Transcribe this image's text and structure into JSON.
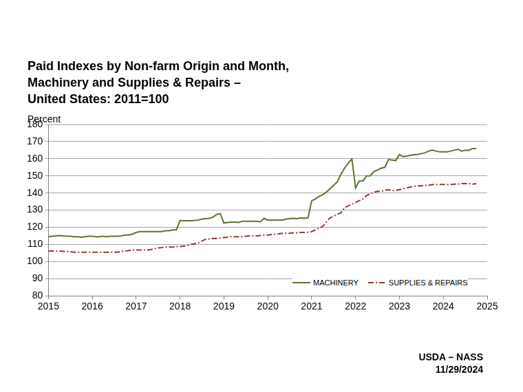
{
  "chart_data": {
    "type": "line",
    "title": [
      "Paid Indexes by Non-farm Origin and Month,",
      "Machinery and Supplies & Repairs –",
      "United States: 2011=100"
    ],
    "y_label": "Percent",
    "source": "USDA – NASS",
    "date": "11/29/2024",
    "xlim": [
      2015,
      2025
    ],
    "xticks": [
      2015,
      2016,
      2017,
      2018,
      2019,
      2020,
      2021,
      2022,
      2023,
      2024,
      2025
    ],
    "ylim": [
      80,
      180
    ],
    "yticks": [
      80,
      90,
      100,
      110,
      120,
      130,
      140,
      150,
      160,
      170,
      180
    ],
    "grid": true,
    "legend": "lower right",
    "x": [
      2015.0,
      2015.083,
      2015.167,
      2015.25,
      2015.333,
      2015.417,
      2015.5,
      2015.583,
      2015.667,
      2015.75,
      2015.833,
      2015.917,
      2016.0,
      2016.083,
      2016.167,
      2016.25,
      2016.333,
      2016.417,
      2016.5,
      2016.583,
      2016.667,
      2016.75,
      2016.833,
      2016.917,
      2017.0,
      2017.083,
      2017.167,
      2017.25,
      2017.333,
      2017.417,
      2017.5,
      2017.583,
      2017.667,
      2017.75,
      2017.833,
      2017.917,
      2018.0,
      2018.083,
      2018.167,
      2018.25,
      2018.333,
      2018.417,
      2018.5,
      2018.583,
      2018.667,
      2018.75,
      2018.833,
      2018.917,
      2019.0,
      2019.083,
      2019.167,
      2019.25,
      2019.333,
      2019.417,
      2019.5,
      2019.583,
      2019.667,
      2019.75,
      2019.833,
      2019.917,
      2020.0,
      2020.083,
      2020.167,
      2020.25,
      2020.333,
      2020.417,
      2020.5,
      2020.583,
      2020.667,
      2020.75,
      2020.833,
      2020.917,
      2021.0,
      2021.083,
      2021.167,
      2021.25,
      2021.333,
      2021.417,
      2021.5,
      2021.583,
      2021.667,
      2021.75,
      2021.833,
      2021.917,
      2022.0,
      2022.083,
      2022.167,
      2022.25,
      2022.333,
      2022.417,
      2022.5,
      2022.583,
      2022.667,
      2022.75,
      2022.833,
      2022.917,
      2023.0,
      2023.083,
      2023.167,
      2023.25,
      2023.333,
      2023.417,
      2023.5,
      2023.583,
      2023.667,
      2023.75,
      2023.833,
      2023.917,
      2024.0,
      2024.083,
      2024.167,
      2024.25,
      2024.333,
      2024.417,
      2024.5,
      2024.583,
      2024.667,
      2024.75
    ],
    "series": [
      {
        "name": "MACHINERY",
        "color": "#5a7530",
        "line_style": "solid",
        "values": [
          114.5,
          114.8,
          115,
          115.2,
          115,
          114.8,
          114.8,
          114.5,
          114.5,
          114.2,
          114.5,
          114.8,
          114.8,
          114.5,
          114.5,
          114.8,
          114.5,
          114.8,
          114.8,
          114.8,
          115,
          115.5,
          115.5,
          116,
          117,
          117.5,
          117.5,
          117.5,
          117.5,
          117.5,
          117.5,
          117.5,
          118,
          118,
          118.5,
          118.5,
          124,
          123.8,
          123.8,
          123.8,
          124,
          124.2,
          124.8,
          125,
          125.2,
          126,
          127.5,
          128,
          122.5,
          122.8,
          123,
          123,
          122.8,
          123.5,
          123.5,
          123.5,
          123.5,
          123.5,
          123.2,
          125.2,
          124.2,
          124.2,
          124.2,
          124.2,
          124.2,
          124.8,
          125,
          125.2,
          125,
          125.5,
          125.2,
          125.5,
          135.5,
          136.5,
          138,
          139,
          140.5,
          142.5,
          144.5,
          146.5,
          151,
          154.5,
          157.5,
          159.8,
          143,
          147,
          147,
          150,
          150,
          152.5,
          153.5,
          154.5,
          155,
          159.5,
          159.2,
          159,
          162.5,
          161.2,
          161.5,
          162,
          162.3,
          162.5,
          163,
          163.5,
          164.5,
          165,
          164.5,
          164,
          164,
          164,
          164.5,
          165,
          165.5,
          164.5,
          165,
          165,
          166,
          166
        ]
      },
      {
        "name": "SUPPLIES & REPAIRS",
        "color": "#953735",
        "line_style": "dashdot",
        "values": [
          106.2,
          106.2,
          106.2,
          106.2,
          106,
          106,
          105.8,
          105.5,
          105.5,
          105.5,
          105.5,
          105.5,
          105.5,
          105.5,
          105.5,
          105.5,
          105.5,
          105.5,
          105.5,
          105.5,
          106,
          106,
          106.5,
          106.8,
          106.8,
          106.8,
          106.8,
          106.8,
          107,
          107.5,
          108,
          108.2,
          108.5,
          108.5,
          108.5,
          108.8,
          108.8,
          109,
          109.2,
          110,
          110.5,
          111,
          112,
          113,
          113.2,
          113.5,
          113.5,
          113.8,
          114,
          114.2,
          114.5,
          114.5,
          114.5,
          114.5,
          114.8,
          115,
          115,
          115,
          115.2,
          115.5,
          115.5,
          115.8,
          116,
          116.2,
          116.5,
          116.5,
          116.5,
          116.8,
          116.8,
          117,
          117,
          117.2,
          117.5,
          118.5,
          119.5,
          120.5,
          123,
          125.5,
          126.5,
          127.5,
          128.5,
          131.5,
          132.5,
          133.5,
          134.5,
          135.5,
          136.5,
          138.5,
          139.5,
          140.5,
          141,
          141,
          141.5,
          142,
          141.5,
          141.5,
          142,
          142.5,
          143,
          143.5,
          144,
          144.2,
          144.2,
          144.5,
          144.5,
          145,
          145,
          145,
          145,
          145,
          145,
          145.2,
          145.2,
          145.5,
          145.5,
          145.5,
          145.2,
          145.5
        ]
      }
    ]
  }
}
